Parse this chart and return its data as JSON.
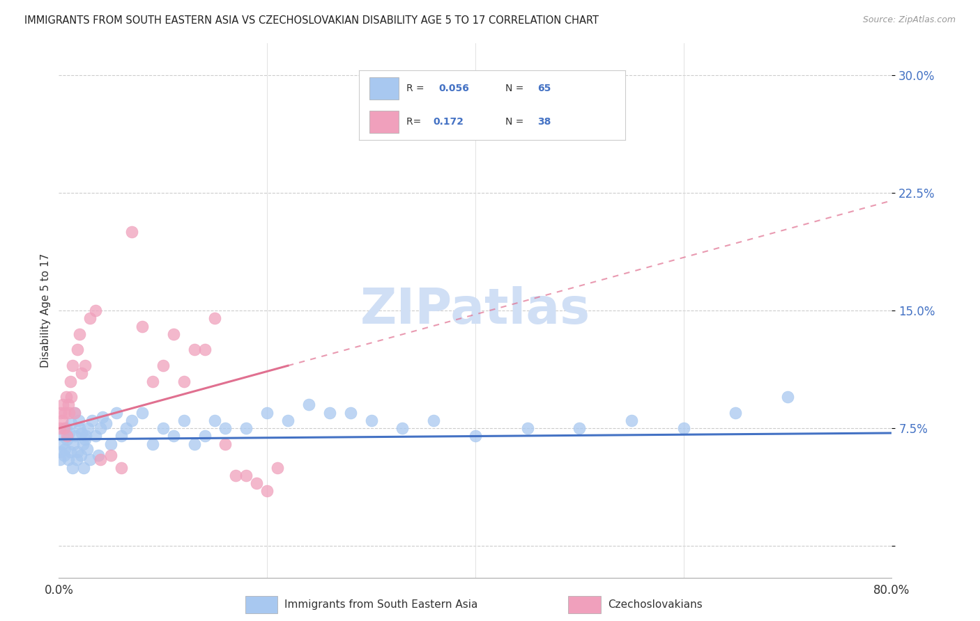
{
  "title": "IMMIGRANTS FROM SOUTH EASTERN ASIA VS CZECHOSLOVAKIAN DISABILITY AGE 5 TO 17 CORRELATION CHART",
  "source": "Source: ZipAtlas.com",
  "ylabel": "Disability Age 5 to 17",
  "legend_label1": "Immigrants from South Eastern Asia",
  "legend_label2": "Czechoslovakians",
  "R1": "0.056",
  "N1": "65",
  "R2": "0.172",
  "N2": "38",
  "color_blue": "#A8C8F0",
  "color_pink": "#F0A0BC",
  "color_blue_line": "#4472C4",
  "color_pink_line": "#E07090",
  "color_blue_text": "#4472C4",
  "watermark_color": "#D0DFF5",
  "blue_scatter_x": [
    0.1,
    0.2,
    0.3,
    0.4,
    0.5,
    0.6,
    0.7,
    0.8,
    0.9,
    1.0,
    1.1,
    1.2,
    1.3,
    1.4,
    1.5,
    1.6,
    1.7,
    1.8,
    1.9,
    2.0,
    2.1,
    2.2,
    2.3,
    2.4,
    2.5,
    2.6,
    2.7,
    2.8,
    3.0,
    3.2,
    3.5,
    3.8,
    4.0,
    4.2,
    4.5,
    5.0,
    5.5,
    6.0,
    6.5,
    7.0,
    8.0,
    9.0,
    10.0,
    11.0,
    12.0,
    13.0,
    14.0,
    15.0,
    16.0,
    18.0,
    20.0,
    22.0,
    24.0,
    26.0,
    28.0,
    30.0,
    33.0,
    36.0,
    40.0,
    45.0,
    50.0,
    55.0,
    60.0,
    65.0,
    70.0
  ],
  "blue_scatter_y": [
    5.5,
    6.0,
    6.5,
    7.0,
    5.8,
    6.2,
    7.5,
    6.8,
    5.5,
    7.2,
    6.0,
    7.8,
    5.0,
    6.5,
    8.5,
    7.0,
    5.5,
    6.0,
    8.0,
    7.5,
    5.8,
    7.2,
    6.5,
    5.0,
    6.8,
    7.0,
    6.2,
    7.5,
    5.5,
    8.0,
    7.0,
    5.8,
    7.5,
    8.2,
    7.8,
    6.5,
    8.5,
    7.0,
    7.5,
    8.0,
    8.5,
    6.5,
    7.5,
    7.0,
    8.0,
    6.5,
    7.0,
    8.0,
    7.5,
    7.5,
    8.5,
    8.0,
    9.0,
    8.5,
    8.5,
    8.0,
    7.5,
    8.0,
    7.0,
    7.5,
    7.5,
    8.0,
    7.5,
    8.5,
    9.5
  ],
  "pink_scatter_x": [
    0.1,
    0.2,
    0.3,
    0.4,
    0.5,
    0.6,
    0.7,
    0.8,
    0.9,
    1.0,
    1.1,
    1.2,
    1.3,
    1.5,
    1.8,
    2.0,
    2.2,
    2.5,
    3.0,
    3.5,
    4.0,
    5.0,
    6.0,
    7.0,
    8.0,
    9.0,
    10.0,
    11.0,
    12.0,
    13.0,
    14.0,
    15.0,
    16.0,
    17.0,
    18.0,
    19.0,
    20.0,
    21.0
  ],
  "pink_scatter_y": [
    7.5,
    8.5,
    8.0,
    9.0,
    7.5,
    8.5,
    9.5,
    7.0,
    9.0,
    8.5,
    10.5,
    9.5,
    11.5,
    8.5,
    12.5,
    13.5,
    11.0,
    11.5,
    14.5,
    15.0,
    5.5,
    5.8,
    5.0,
    20.0,
    14.0,
    10.5,
    11.5,
    13.5,
    10.5,
    12.5,
    12.5,
    14.5,
    6.5,
    4.5,
    4.5,
    4.0,
    3.5,
    5.0
  ],
  "xmin": 0.0,
  "xmax": 80.0,
  "ymin": -2.0,
  "ymax": 32.0,
  "ytick_values": [
    0.0,
    7.5,
    15.0,
    22.5,
    30.0
  ],
  "ytick_labels": [
    "",
    "7.5%",
    "15.0%",
    "22.5%",
    "30.0%"
  ],
  "blue_trend_x0": 0.0,
  "blue_trend_x1": 80.0,
  "blue_trend_y0": 6.8,
  "blue_trend_y1": 7.2,
  "pink_trend_x0": 0.0,
  "pink_trend_x1": 80.0,
  "pink_trend_y0": 7.5,
  "pink_trend_y1": 22.0,
  "pink_solid_x1": 22.0,
  "pink_dash_x0": 22.0
}
